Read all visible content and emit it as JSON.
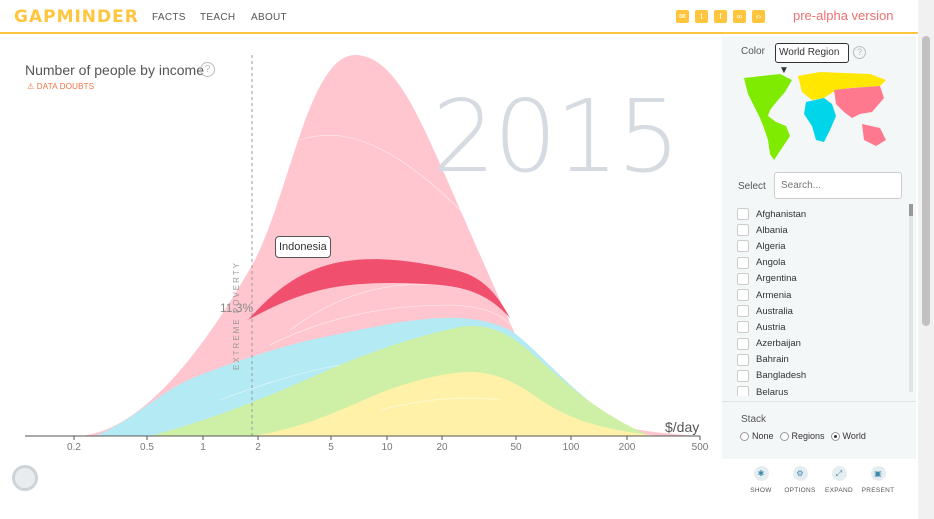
{
  "header": {
    "logo": "GAPMINDER",
    "nav": [
      "FACTS",
      "TEACH",
      "ABOUT"
    ],
    "share_icons": [
      "email-icon",
      "twitter-icon",
      "facebook-icon",
      "link-icon",
      "embed-icon"
    ],
    "version": "pre-alpha version"
  },
  "chart": {
    "title": "Number of people by income",
    "help": "?",
    "doubts": "DATA DOUBTS",
    "year": "2015",
    "highlight_label": "Indonesia",
    "highlight_pct": "11.3%",
    "poverty_label": "EXTREME POVERTY",
    "x_unit": "$/day"
  },
  "chart_data": {
    "type": "area",
    "xlabel": "$/day",
    "x_scale": "log",
    "xlim": [
      0.1,
      500
    ],
    "x_ticks": [
      "0.2",
      "0.5",
      "1",
      "2",
      "5",
      "10",
      "20",
      "50",
      "100",
      "200",
      "500"
    ],
    "extreme_poverty_line": 1.9,
    "stacked": true,
    "series": [
      {
        "name": "Asia",
        "color": "#ff798e",
        "peak_x": 6.5
      },
      {
        "name": "Africa",
        "color": "#00d5e9",
        "peak_x": 1.8
      },
      {
        "name": "Americas",
        "color": "#7feb00",
        "peak_x": 14
      },
      {
        "name": "Europe",
        "color": "#ffe700",
        "peak_x": 28
      }
    ],
    "highlight": {
      "name": "Indonesia",
      "share": "11.3%",
      "color": "#f0506e"
    }
  },
  "sidebar": {
    "color_label": "Color",
    "color_value": "World Region",
    "help": "?",
    "select_label": "Select",
    "search_placeholder": "Search...",
    "countries": [
      "Afghanistan",
      "Albania",
      "Algeria",
      "Angola",
      "Argentina",
      "Armenia",
      "Australia",
      "Austria",
      "Azerbaijan",
      "Bahrain",
      "Bangladesh",
      "Belarus"
    ],
    "stack_label": "Stack",
    "stack_options": [
      {
        "label": "None",
        "selected": false
      },
      {
        "label": "Regions",
        "selected": false
      },
      {
        "label": "World",
        "selected": true
      }
    ],
    "region_colors": {
      "americas": "#7feb00",
      "africa": "#00d5e9",
      "asia": "#ff798e",
      "europe": "#ffe700"
    }
  },
  "tools": [
    {
      "label": "SHOW",
      "icon": "asterisk-icon"
    },
    {
      "label": "OPTIONS",
      "icon": "gear-icon"
    },
    {
      "label": "EXPAND",
      "icon": "expand-icon"
    },
    {
      "label": "PRESENT",
      "icon": "present-icon"
    }
  ]
}
